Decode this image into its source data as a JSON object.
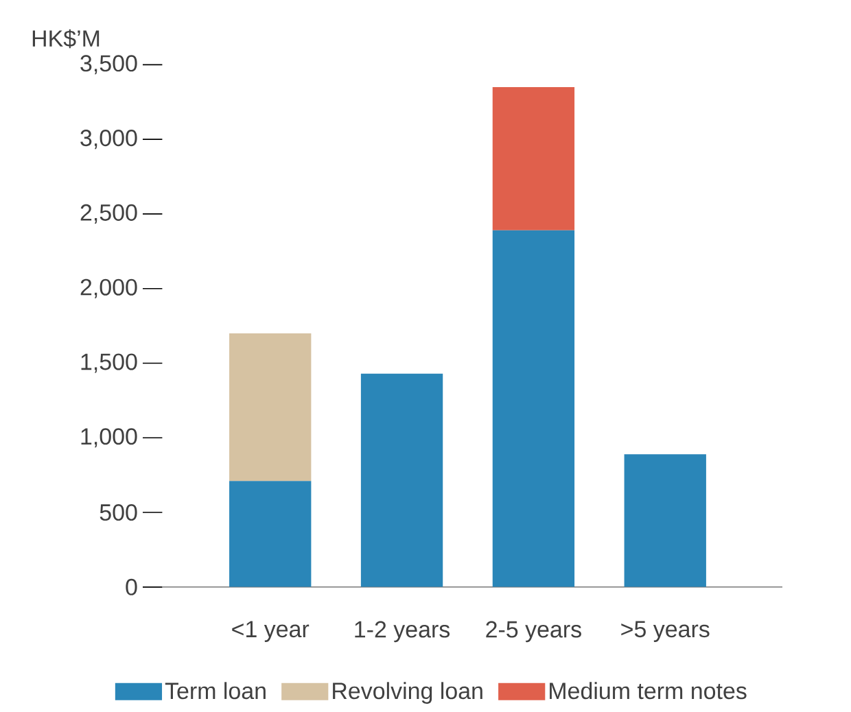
{
  "chart_data": {
    "type": "bar",
    "stacked": true,
    "ylabel": "HK$’M",
    "categories": [
      "<1 year",
      "1-2 years",
      "2-5 years",
      ">5 years"
    ],
    "series": [
      {
        "name": "Term loan",
        "color": "#2a86b8",
        "values": [
          710,
          1430,
          2390,
          890
        ]
      },
      {
        "name": "Revolving loan",
        "color": "#d6c2a2",
        "values": [
          990,
          null,
          null,
          null
        ]
      },
      {
        "name": "Medium term notes",
        "color": "#e0604c",
        "values": [
          null,
          null,
          960,
          null
        ]
      }
    ],
    "ylim": [
      0,
      3500
    ],
    "yticks": [
      {
        "value": 0,
        "label": "0"
      },
      {
        "value": 500,
        "label": "500"
      },
      {
        "value": 1000,
        "label": "1,000"
      },
      {
        "value": 1500,
        "label": "1,500"
      },
      {
        "value": 2000,
        "label": "2,000"
      },
      {
        "value": 2500,
        "label": "2,500"
      },
      {
        "value": 3000,
        "label": "3,000"
      },
      {
        "value": 3500,
        "label": "3,500"
      }
    ],
    "grid": false,
    "legend": "bottom"
  }
}
